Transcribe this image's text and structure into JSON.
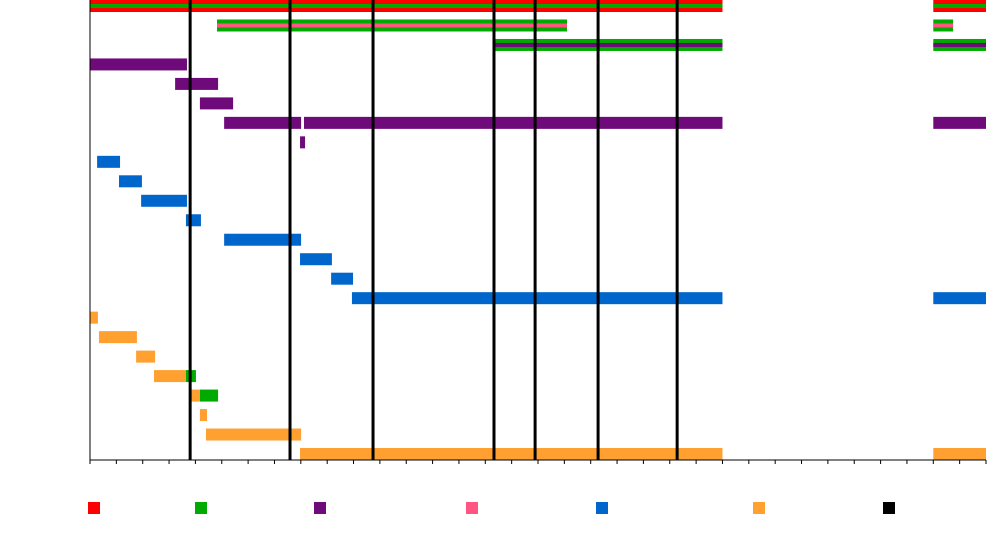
{
  "chart_data": {
    "type": "timeline",
    "categories": [
      null,
      null,
      null,
      null,
      null,
      null,
      null,
      null,
      null,
      null,
      null,
      null,
      null,
      null,
      null,
      null,
      null,
      null,
      null,
      null,
      null,
      null,
      null,
      null
    ],
    "xlim": [
      0,
      34
    ],
    "xticks": [
      0,
      1,
      2,
      3,
      4,
      5,
      6,
      7,
      8,
      9,
      10,
      11,
      12,
      13,
      14,
      15,
      16,
      17,
      18,
      19,
      20,
      21,
      22,
      23,
      24,
      25,
      26,
      27,
      28,
      29,
      30,
      31,
      32,
      33,
      34
    ],
    "markers": {
      "color": "#000000",
      "values": [
        3.8,
        7.59,
        10.74,
        15.33,
        16.89,
        19.28,
        22.28
      ]
    },
    "bars": [
      {
        "category": 0,
        "start": 0,
        "end": 24,
        "color": "#ff0000",
        "stripe": "#00aa00"
      },
      {
        "category": 0,
        "start": 32,
        "end": 34,
        "color": "#ff0000",
        "stripe": "#00aa00"
      },
      {
        "category": 1,
        "start": 4.82,
        "end": 18.1,
        "color": "#00aa00",
        "stripe": "#ff5580"
      },
      {
        "category": 1,
        "start": 32,
        "end": 32.75,
        "color": "#00aa00",
        "stripe": "#ff5580"
      },
      {
        "category": 2,
        "start": 15.33,
        "end": 24,
        "color": "#00aa00",
        "stripe": "#6f0a7a"
      },
      {
        "category": 2,
        "start": 32,
        "end": 34,
        "color": "#00aa00",
        "stripe": "#6f0a7a"
      },
      {
        "category": 3,
        "start": 0,
        "end": 3.68,
        "color": "#6f0a7a"
      },
      {
        "category": 4,
        "start": 3.23,
        "end": 4.86,
        "color": "#6f0a7a"
      },
      {
        "category": 5,
        "start": 4.17,
        "end": 5.43,
        "color": "#6f0a7a"
      },
      {
        "category": 6,
        "start": 5.09,
        "end": 8.01,
        "color": "#6f0a7a"
      },
      {
        "category": 6,
        "start": 8.12,
        "end": 24,
        "color": "#6f0a7a"
      },
      {
        "category": 6,
        "start": 32,
        "end": 34,
        "color": "#6f0a7a"
      },
      {
        "category": 7,
        "start": 7.97,
        "end": 8.16,
        "color": "#6f0a7a"
      },
      {
        "category": 8,
        "start": 0.27,
        "end": 1.14,
        "color": "#0066cc"
      },
      {
        "category": 9,
        "start": 1.1,
        "end": 1.97,
        "color": "#0066cc"
      },
      {
        "category": 10,
        "start": 1.94,
        "end": 3.68,
        "color": "#0066cc"
      },
      {
        "category": 11,
        "start": 3.64,
        "end": 4.21,
        "color": "#0066cc"
      },
      {
        "category": 12,
        "start": 5.09,
        "end": 8.01,
        "color": "#0066cc"
      },
      {
        "category": 13,
        "start": 7.97,
        "end": 9.18,
        "color": "#0066cc"
      },
      {
        "category": 14,
        "start": 9.15,
        "end": 9.98,
        "color": "#0066cc"
      },
      {
        "category": 15,
        "start": 9.94,
        "end": 24,
        "color": "#0066cc"
      },
      {
        "category": 15,
        "start": 32,
        "end": 34,
        "color": "#0066cc"
      },
      {
        "category": 16,
        "start": 0,
        "end": 0.3,
        "color": "#ffa030"
      },
      {
        "category": 17,
        "start": 0.34,
        "end": 1.78,
        "color": "#ffa030"
      },
      {
        "category": 18,
        "start": 1.75,
        "end": 2.47,
        "color": "#ffa030"
      },
      {
        "category": 19,
        "start": 2.43,
        "end": 3.64,
        "color": "#ffa030"
      },
      {
        "category": 19,
        "start": 3.64,
        "end": 4.02,
        "color": "#00aa00"
      },
      {
        "category": 20,
        "start": 3.76,
        "end": 4.17,
        "color": "#ffa030"
      },
      {
        "category": 20,
        "start": 4.17,
        "end": 4.86,
        "color": "#00aa00"
      },
      {
        "category": 21,
        "start": 4.17,
        "end": 4.44,
        "color": "#ffa030"
      },
      {
        "category": 22,
        "start": 4.4,
        "end": 8.01,
        "color": "#ffa030"
      },
      {
        "category": 23,
        "start": 7.97,
        "end": 24,
        "color": "#ffa030"
      },
      {
        "category": 23,
        "start": 32,
        "end": 34,
        "color": "#ffa030"
      }
    ],
    "legend": {
      "colors": [
        "#ff0000",
        "#00aa00",
        "#6f0a7a",
        "#ff5580",
        "#0066cc",
        "#ffa030",
        "#000000"
      ]
    }
  }
}
